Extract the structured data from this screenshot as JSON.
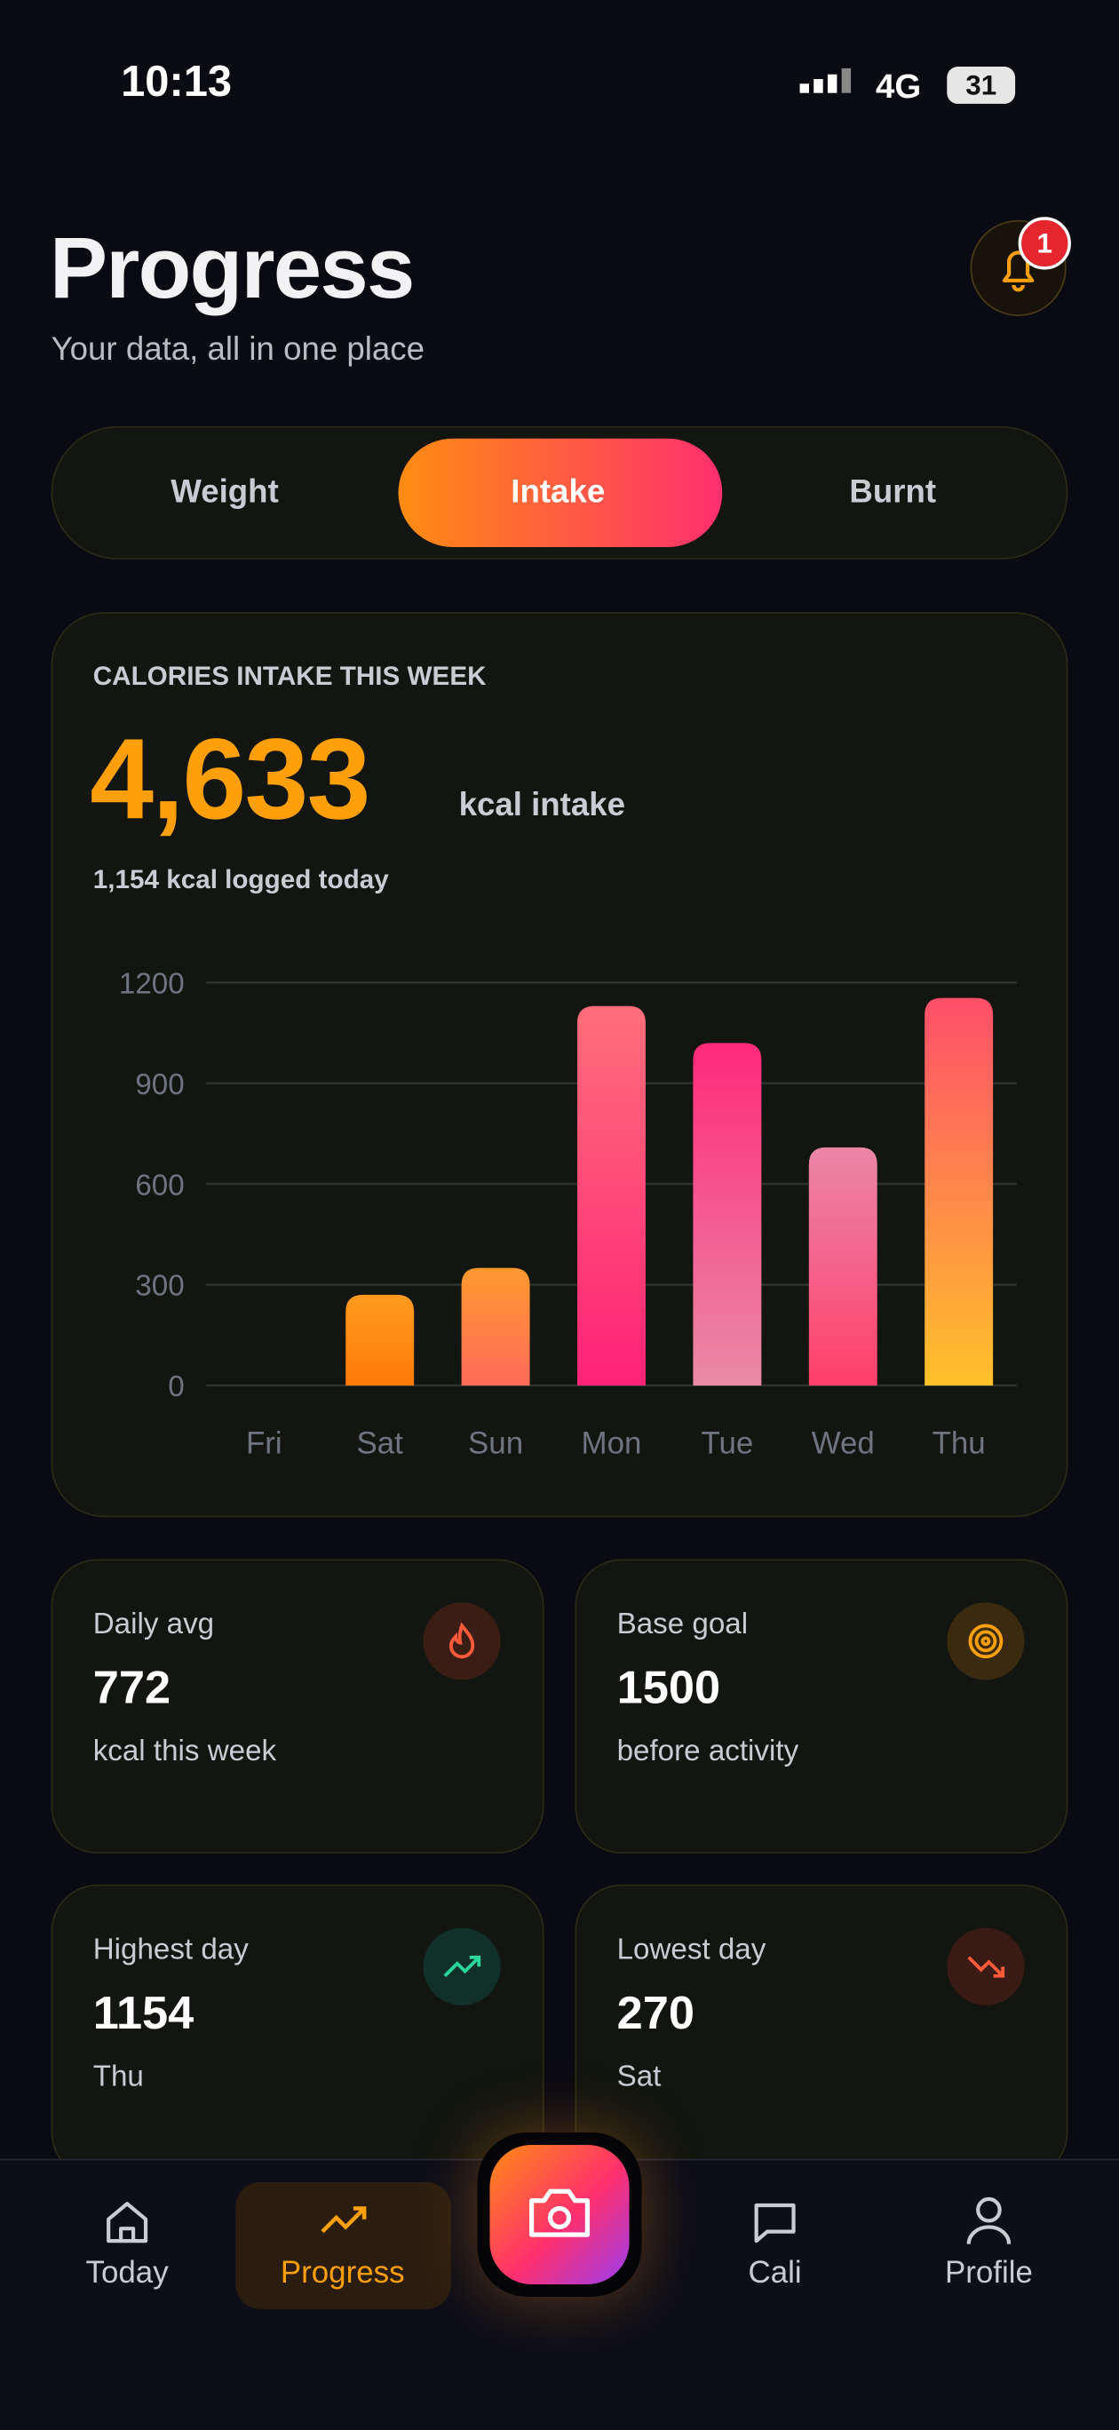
{
  "status_bar": {
    "time": "10:13",
    "network": "4G",
    "battery": "31"
  },
  "header": {
    "title": "Progress",
    "subtitle": "Your data, all in one place",
    "notification_count": "1"
  },
  "tabs": [
    "Weight",
    "Intake",
    "Burnt"
  ],
  "summary": {
    "heading": "CALORIES INTAKE THIS WEEK",
    "total": "4,633",
    "total_unit": "kcal intake",
    "today": "1,154 kcal logged today"
  },
  "chart_data": {
    "type": "bar",
    "categories": [
      "Fri",
      "Sat",
      "Sun",
      "Mon",
      "Tue",
      "Wed",
      "Thu"
    ],
    "values": [
      0,
      270,
      350,
      1130,
      1020,
      709,
      1154
    ],
    "colors": [
      [
        "#ff9a1f",
        "#ff7a0a"
      ],
      [
        "#ff9a1f",
        "#ff7a0a"
      ],
      [
        "#ff9a2e",
        "#ff6a5a"
      ],
      [
        "#ff6f7a",
        "#ff2277"
      ],
      [
        "#ff2a78",
        "#e98aa8"
      ],
      [
        "#ea86a8",
        "#ff3f6a"
      ],
      [
        "#ff4f6a",
        "#ffc12a"
      ]
    ],
    "ylim": [
      0,
      1200
    ],
    "yticks": [
      0,
      300,
      600,
      900,
      1200
    ],
    "grid": true
  },
  "stats": [
    {
      "label": "Daily avg",
      "value": "772",
      "sub": "kcal this week"
    },
    {
      "label": "Base goal",
      "value": "1500",
      "sub": "before activity"
    },
    {
      "label": "Highest day",
      "value": "1154",
      "sub": "Thu"
    },
    {
      "label": "Lowest day",
      "value": "270",
      "sub": "Sat"
    }
  ],
  "nav": [
    "Today",
    "Progress",
    "Cali",
    "Profile"
  ]
}
